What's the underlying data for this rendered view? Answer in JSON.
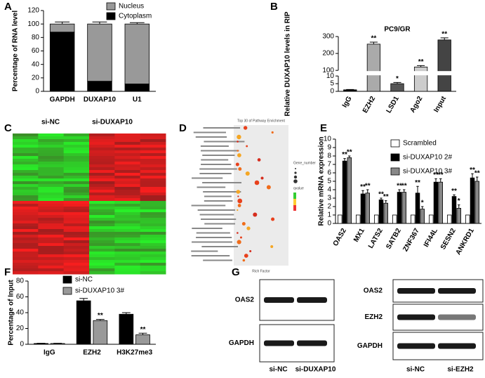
{
  "chart_data": [
    {
      "type": "bar",
      "stacked": true,
      "ylabel": "Percentage of RNA level",
      "categories": [
        "GAPDH",
        "DUXAP10",
        "U1"
      ],
      "series": [
        {
          "name": "Cytoplasm",
          "color": "#000000",
          "values": [
            88,
            15,
            11
          ],
          "errors": [
            3,
            3,
            2
          ]
        },
        {
          "name": "Nucleus",
          "color": "#999999",
          "values": [
            12,
            85,
            89
          ],
          "errors": [
            3,
            3,
            2
          ]
        }
      ],
      "ylim": [
        0,
        120
      ],
      "yticks": [
        0,
        20,
        40,
        60,
        80,
        100,
        120
      ]
    },
    {
      "type": "bar",
      "title": "PC9/GR",
      "ylabel": "Relative DUXAP10 levels in RIP",
      "categories": [
        "IgG",
        "EZH2",
        "LSD1",
        "Ago2",
        "Input"
      ],
      "values": [
        1,
        255,
        5,
        120,
        280
      ],
      "errors": [
        0.2,
        12,
        0.8,
        8,
        12
      ],
      "colors": [
        "#000000",
        "#aaaaaa",
        "#555555",
        "#cccccc",
        "#444444"
      ],
      "labels": [
        null,
        "**",
        "*",
        "**",
        "**"
      ],
      "ylim": [
        0,
        300
      ],
      "ybreak": [
        10,
        100
      ],
      "yticks": [
        0,
        5,
        10,
        100,
        200,
        300
      ]
    },
    {
      "type": "bar",
      "ylabel": "Relative mRNA expression",
      "categories": [
        "OAS2",
        "MX1",
        "LATS2",
        "SATB2",
        "ZNF367",
        "IFI44L",
        "SESN2",
        "ANKRD1"
      ],
      "series": [
        {
          "name": "Scrambled",
          "color": "#ffffff",
          "values": [
            1,
            1,
            1,
            1,
            1,
            1,
            1,
            1
          ]
        },
        {
          "name": "si-DUXAP10 2#",
          "color": "#000000",
          "values": [
            7.4,
            3.5,
            2.8,
            3.7,
            3.6,
            4.9,
            3.2,
            5.4
          ],
          "errors": [
            0.3,
            0.4,
            0.2,
            0.3,
            0.8,
            0.4,
            0.2,
            0.5
          ],
          "labels": [
            "**",
            "**",
            "**",
            "**",
            "**",
            "**",
            "**",
            "**"
          ]
        },
        {
          "name": "si-DUXAP10 3#",
          "color": "#888888",
          "values": [
            7.8,
            3.6,
            2.4,
            3.7,
            1.7,
            4.9,
            1.8,
            5.0
          ],
          "errors": [
            0.2,
            0.4,
            0.3,
            0.3,
            0.3,
            0.4,
            0.4,
            0.5
          ],
          "labels": [
            "**",
            "**",
            "**",
            "**",
            "*",
            "**",
            "*",
            "**"
          ]
        }
      ],
      "ylim": [
        0,
        10
      ],
      "yticks": [
        0,
        1,
        2,
        3,
        4,
        5,
        6,
        7,
        8,
        9,
        10
      ]
    },
    {
      "type": "bar",
      "ylabel": "Percentage of Input",
      "categories": [
        "IgG",
        "EZH2",
        "H3K27me3"
      ],
      "series": [
        {
          "name": "si-NC",
          "color": "#000000",
          "values": [
            1,
            55,
            38
          ],
          "errors": [
            0.3,
            3,
            2
          ]
        },
        {
          "name": "si-DUXAP10 3#",
          "color": "#999999",
          "values": [
            1,
            30,
            12
          ],
          "errors": [
            0.3,
            1.5,
            2
          ],
          "labels": [
            null,
            "**",
            "**"
          ]
        }
      ],
      "ylim": [
        0,
        80
      ],
      "yticks": [
        0,
        20,
        40,
        60,
        80
      ]
    }
  ],
  "panels": {
    "letters": [
      "A",
      "B",
      "C",
      "D",
      "E",
      "F",
      "G"
    ],
    "heatmap": {
      "groups": [
        "si-NC",
        "si-DUXAP10"
      ]
    },
    "enrichment": {
      "title": "Top 30 of Pathway Enrichment",
      "xlabel": "Rich Factor",
      "legend_size": "Gene_number",
      "legend_color": "qvalue"
    },
    "blot_left": {
      "bands": [
        "OAS2",
        "GAPDH"
      ],
      "lanes": [
        "si-NC",
        "si-DUXAP10"
      ]
    },
    "blot_right": {
      "bands": [
        "OAS2",
        "EZH2",
        "GAPDH"
      ],
      "lanes": [
        "si-NC",
        "si-EZH2"
      ]
    }
  }
}
